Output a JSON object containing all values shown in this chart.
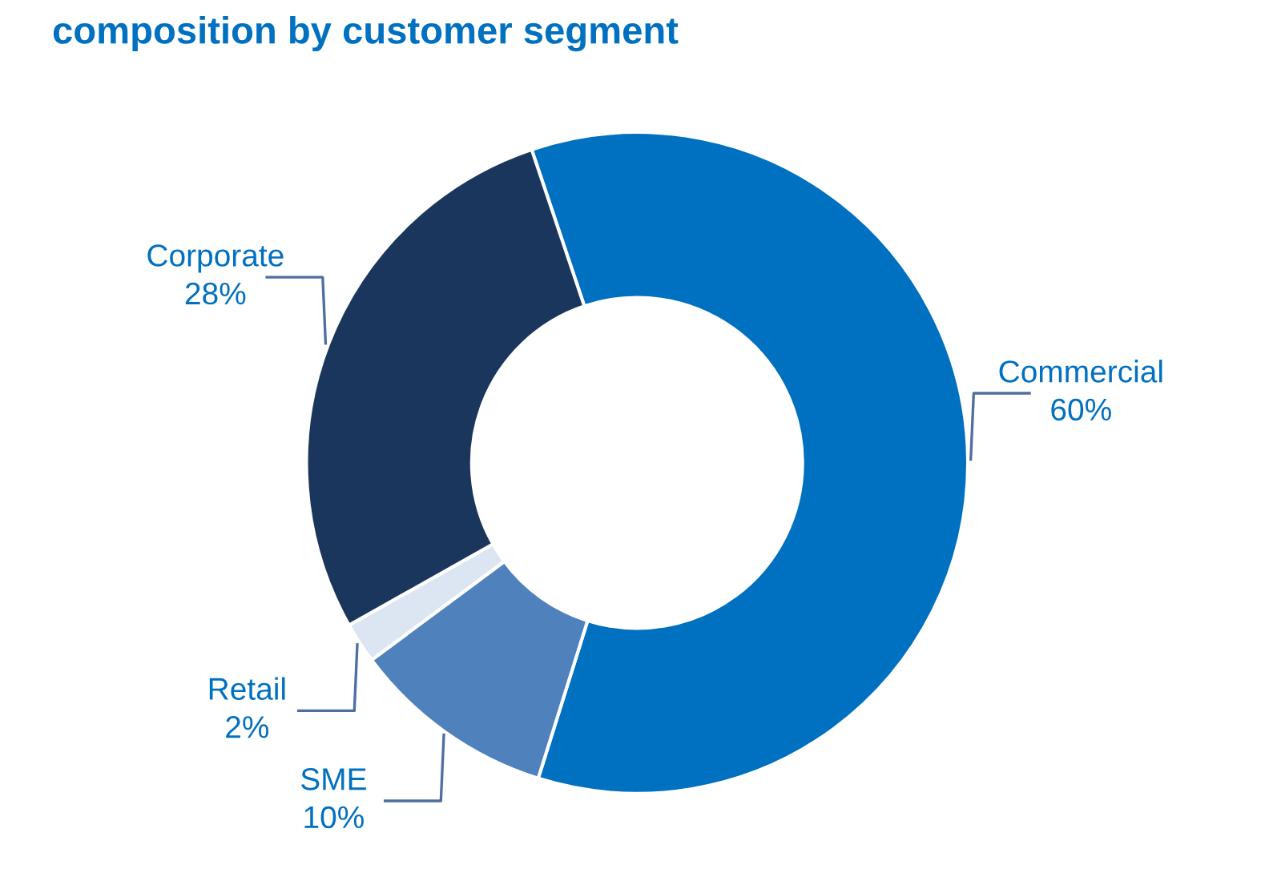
{
  "chart_data": {
    "type": "donut",
    "title": "composition by customer segment",
    "categories": [
      "Commercial",
      "SME",
      "Retail",
      "Corporate"
    ],
    "values": [
      60,
      10,
      2,
      28
    ],
    "colors": [
      "#0070c0",
      "#4f81bd",
      "#dce6f2",
      "#1b365d"
    ],
    "value_labels": [
      "60%",
      "10%",
      "2%",
      "28%"
    ]
  }
}
